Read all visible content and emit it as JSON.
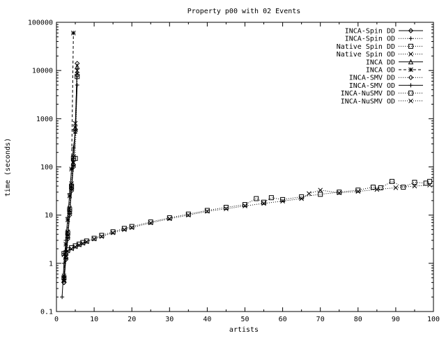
{
  "chart_data": {
    "type": "line",
    "title": "Property p00 with 02 Events",
    "xlabel": "artists",
    "ylabel": "time (seconds)",
    "xlim": [
      0,
      100
    ],
    "ylim": [
      0.1,
      100000
    ],
    "yscale": "log",
    "grid": false,
    "legend_position": "top-right",
    "x_ticks": [
      0,
      10,
      20,
      30,
      40,
      50,
      60,
      70,
      80,
      90,
      100
    ],
    "x_tick_labels": [
      "0",
      "10",
      "20",
      "30",
      "40",
      "50",
      "60",
      "70",
      "80",
      "90",
      "100"
    ],
    "y_ticks": [
      0.1,
      1,
      10,
      100,
      1000,
      10000,
      100000
    ],
    "y_tick_labels": [
      "0.1",
      "1",
      "10",
      "100",
      "1000",
      "10000",
      "100000"
    ],
    "series": [
      {
        "name": "INCA-Spin DD",
        "marker": "diamond",
        "dash": "solid",
        "x": [
          2,
          2.5,
          3,
          3.5,
          4,
          4.5,
          5,
          5.5
        ],
        "y": [
          0.4,
          1.3,
          3.5,
          11,
          35,
          110,
          600,
          14000
        ]
      },
      {
        "name": "INCA-Spin OD",
        "marker": "plus",
        "dash": "dot",
        "x": [
          2,
          2.5,
          3,
          3.5,
          4,
          4.5,
          5,
          5.5
        ],
        "y": [
          0.5,
          1.5,
          4,
          12,
          40,
          130,
          700,
          9000
        ]
      },
      {
        "name": "Native Spin DD",
        "marker": "square",
        "dash": "dot",
        "x": [
          2,
          3,
          4,
          5,
          6,
          7,
          8,
          10,
          12,
          15,
          18,
          20,
          25,
          30,
          35,
          40,
          45,
          50,
          53,
          55,
          57,
          60,
          65,
          70,
          75,
          80,
          84,
          86,
          89,
          92,
          95,
          98,
          99
        ],
        "y": [
          1.6,
          1.9,
          2.1,
          2.3,
          2.5,
          2.7,
          2.9,
          3.3,
          3.8,
          4.5,
          5.3,
          5.8,
          7.2,
          8.8,
          10.5,
          12.5,
          14.5,
          16.5,
          22,
          18.5,
          23,
          21,
          24,
          27,
          30,
          33,
          38,
          37,
          50,
          38,
          48,
          46,
          50
        ]
      },
      {
        "name": "Native Spin OD",
        "marker": "cross",
        "dash": "dot",
        "x": [
          2,
          3,
          4,
          5,
          6,
          7,
          8,
          10,
          12,
          15,
          18,
          20,
          25,
          30,
          35,
          40,
          45,
          50,
          55,
          60,
          65,
          67,
          70,
          75,
          80,
          85,
          90,
          95,
          99
        ],
        "y": [
          1.5,
          1.8,
          2.0,
          2.2,
          2.4,
          2.6,
          2.8,
          3.2,
          3.6,
          4.3,
          5.0,
          5.5,
          6.9,
          8.4,
          10,
          12,
          13.5,
          15.5,
          17.5,
          19.5,
          22,
          28,
          33,
          29,
          31,
          34,
          37,
          40,
          42
        ]
      },
      {
        "name": "INCA DD",
        "marker": "triangle",
        "dash": "solid",
        "x": [
          2,
          2.5,
          3,
          3.5,
          4,
          4.5,
          5,
          5.5
        ],
        "y": [
          0.45,
          1.4,
          3.8,
          12,
          38,
          120,
          650,
          12000
        ]
      },
      {
        "name": "INCA OD",
        "marker": "star",
        "dash": "dash",
        "x": [
          2,
          2.5,
          3,
          3.5,
          4,
          4.5
        ],
        "y": [
          0.5,
          2.5,
          8,
          25,
          90,
          60000
        ]
      },
      {
        "name": "INCA-SMV DD",
        "marker": "diamond",
        "dash": "dot",
        "x": [
          2,
          2.5,
          3,
          3.5,
          4,
          4.5,
          5,
          5.5
        ],
        "y": [
          0.4,
          1.2,
          3.2,
          10,
          32,
          100,
          550,
          8000
        ]
      },
      {
        "name": "INCA-SMV OD",
        "marker": "plus",
        "dash": "solid",
        "x": [
          1.5,
          2,
          2.5,
          3,
          3.5,
          4,
          4.5,
          5,
          5.5
        ],
        "y": [
          0.2,
          1.0,
          3.0,
          9,
          28,
          90,
          250,
          500,
          5000
        ]
      },
      {
        "name": "INCA-NuSMV DD",
        "marker": "square",
        "dash": "dot",
        "x": [
          2,
          2.5,
          3,
          3.5,
          4,
          4.5,
          5,
          5.5
        ],
        "y": [
          0.5,
          1.6,
          4.2,
          13,
          40,
          150,
          150,
          7500
        ]
      },
      {
        "name": "INCA-NuSMV OD",
        "marker": "cross",
        "dash": "dot",
        "x": [
          2,
          2.5,
          3,
          3.5,
          4,
          4.5,
          5,
          5.5
        ],
        "y": [
          0.55,
          1.7,
          4.5,
          14,
          45,
          160,
          800,
          10000
        ]
      }
    ]
  }
}
